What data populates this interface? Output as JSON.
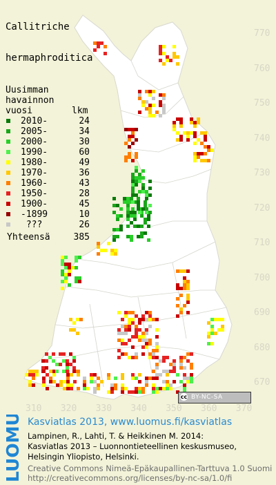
{
  "title_lines": [
    "Callitriche",
    "hermaphroditica"
  ],
  "legend": {
    "heading_lines": [
      "Uusimman",
      "havainnon",
      "vuosi"
    ],
    "count_header": "lkm",
    "entries": [
      {
        "label": "2010-",
        "count": "24",
        "color": "#0b7a0b"
      },
      {
        "label": "2005-",
        "count": "34",
        "color": "#1aa61a"
      },
      {
        "label": "2000-",
        "count": "30",
        "color": "#29cf29"
      },
      {
        "label": "1990-",
        "count": "60",
        "color": "#4df04d"
      },
      {
        "label": "1980-",
        "count": "49",
        "color": "#ffff00"
      },
      {
        "label": "1970-",
        "count": "36",
        "color": "#ffc800"
      },
      {
        "label": "1960-",
        "count": "43",
        "color": "#ff7f00"
      },
      {
        "label": "1950-",
        "count": "28",
        "color": "#e62222"
      },
      {
        "label": "1900-",
        "count": "45",
        "color": "#c80000"
      },
      {
        "label": "-1899",
        "count": "10",
        "color": "#960000"
      },
      {
        "label": " ???",
        "count": "26",
        "color": "#c8c8c8"
      }
    ],
    "total_label": "Yhteensä",
    "total_count": "385"
  },
  "y_ticks": [
    "770",
    "760",
    "750",
    "740",
    "730",
    "720",
    "710",
    "700",
    "690",
    "680",
    "670"
  ],
  "x_ticks": [
    "310",
    "320",
    "330",
    "340",
    "350",
    "360",
    "370"
  ],
  "license_badge": "BY-NC-SA",
  "brand": "LUOMUS",
  "credit": {
    "main": "Kasviatlas 2013, www.luomus.fi/kasviatlas",
    "citation_lines": [
      "Lampinen, R., Lahti, T. & Heikkinen M. 2014:",
      "Kasviatlas 2013 – Luonnontieteellinen keskusmuseo,",
      "Helsingin Yliopisto, Helsinki."
    ],
    "license_lines": [
      "Creative Commons Nimeä-Epäkaupallinen-Tarttuva 1.0 Suomi",
      "http://creativecommons.org/licenses/by-nc-sa/1.0/fi"
    ]
  },
  "colors": {
    "background": "#f3f3d9",
    "land": "#ffffff",
    "borders": "#d0d0c8",
    "tick_text": "#d6d6c6",
    "credit_blue": "#2a8ad0",
    "brand_blue": "#1f86d4"
  }
}
